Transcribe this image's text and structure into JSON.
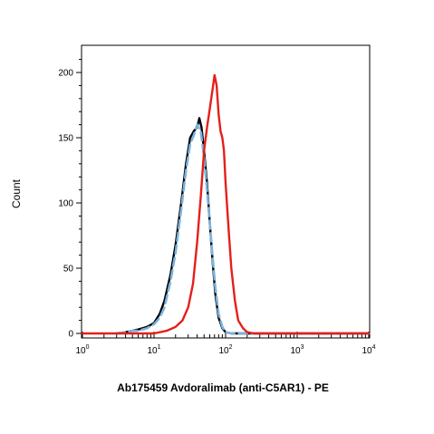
{
  "chart_data": {
    "type": "line",
    "title": "",
    "xlabel": "Ab175459 Avdoralimab (anti-C5AR1) - PE",
    "ylabel": "Count",
    "x_scale": "log",
    "xlim": [
      1,
      10000
    ],
    "ylim": [
      0,
      215
    ],
    "x_tick_labels": [
      {
        "value": 1,
        "base": "10",
        "exp": "0"
      },
      {
        "value": 10,
        "base": "10",
        "exp": "1"
      },
      {
        "value": 100,
        "base": "10",
        "exp": "2"
      },
      {
        "value": 1000,
        "base": "10",
        "exp": "3"
      },
      {
        "value": 10000,
        "base": "10",
        "exp": "4"
      }
    ],
    "y_ticks": [
      0,
      50,
      100,
      150,
      200
    ],
    "y_tick_labels": [
      "0",
      "50",
      "100",
      "150",
      "200"
    ],
    "grid": false,
    "legend": "none",
    "series": [
      {
        "color": "#000000",
        "style": "solid",
        "x": [
          3,
          4,
          5,
          6,
          7,
          8,
          10,
          12,
          14,
          17,
          20,
          24,
          28,
          32,
          36,
          40,
          43,
          46,
          50,
          55,
          60,
          66,
          72,
          80,
          90,
          100,
          120,
          150,
          200,
          400,
          10000
        ],
        "y": [
          0,
          1,
          2,
          3,
          4,
          5,
          8,
          15,
          25,
          45,
          68,
          100,
          130,
          150,
          155,
          158,
          165,
          158,
          140,
          115,
          85,
          55,
          30,
          12,
          4,
          1,
          0,
          0,
          0,
          0,
          0
        ]
      },
      {
        "color": "#7ab4e0",
        "style": "dashed",
        "x": [
          3,
          4,
          5,
          6,
          8,
          10,
          12,
          14,
          17,
          20,
          24,
          28,
          32,
          36,
          40,
          45,
          50,
          55,
          60,
          66,
          72,
          80,
          90,
          100,
          120,
          150,
          200,
          400,
          10000
        ],
        "y": [
          0,
          1,
          2,
          2,
          4,
          7,
          12,
          20,
          40,
          62,
          95,
          125,
          145,
          152,
          160,
          155,
          135,
          110,
          85,
          58,
          35,
          15,
          5,
          1,
          0,
          0,
          0,
          0,
          0
        ]
      },
      {
        "color": "#e3201b",
        "style": "solid",
        "x": [
          1,
          10,
          15,
          20,
          25,
          30,
          35,
          40,
          45,
          50,
          55,
          60,
          65,
          70,
          75,
          80,
          85,
          90,
          95,
          100,
          110,
          120,
          135,
          150,
          175,
          200,
          250,
          300,
          10000
        ],
        "y": [
          0,
          0,
          2,
          5,
          10,
          20,
          38,
          70,
          105,
          140,
          158,
          172,
          185,
          198,
          190,
          168,
          155,
          150,
          140,
          115,
          80,
          50,
          25,
          10,
          4,
          1,
          0,
          0,
          0
        ]
      }
    ]
  }
}
